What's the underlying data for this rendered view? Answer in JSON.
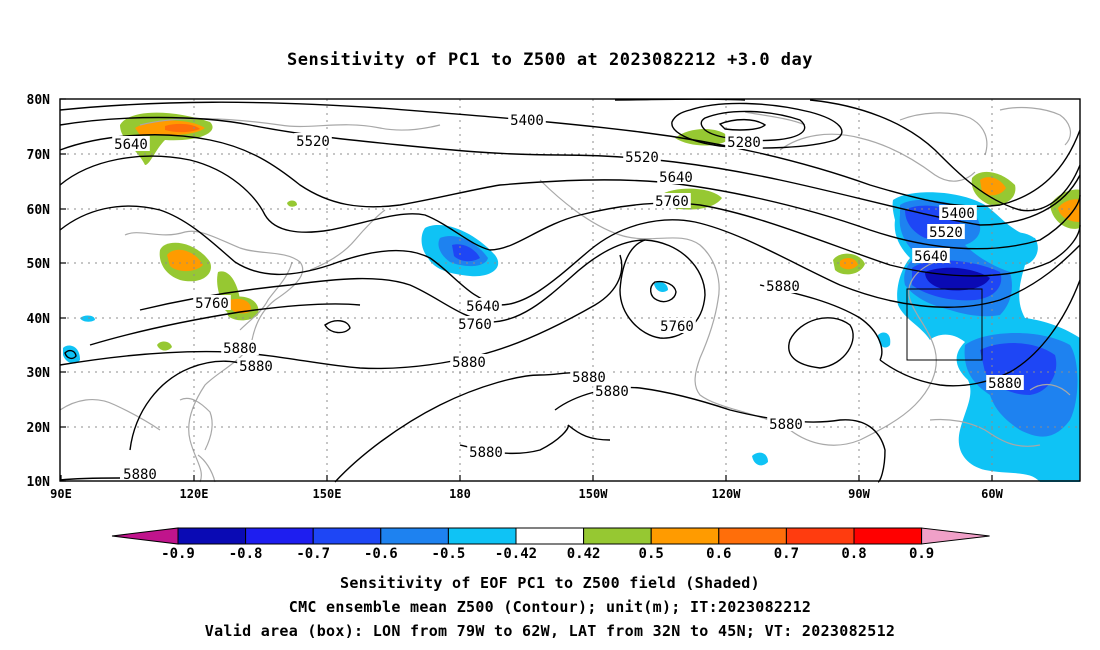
{
  "title": "Sensitivity of PC1 to Z500 at 2023082212 +3.0 day",
  "lat_labels": [
    "80N",
    "70N",
    "60N",
    "50N",
    "40N",
    "30N",
    "20N",
    "10N"
  ],
  "lon_labels": [
    "90E",
    "120E",
    "150E",
    "180",
    "150W",
    "120W",
    "90W",
    "60W"
  ],
  "contour_labels": [
    "5400",
    "5520",
    "5640",
    "5280",
    "5520",
    "5640",
    "5760",
    "5400",
    "5520",
    "5640",
    "5760",
    "5640",
    "5760",
    "5760",
    "5880",
    "5880",
    "5880",
    "5880",
    "5880",
    "5880",
    "5880",
    "5880",
    "5880",
    "5880"
  ],
  "colorbar": {
    "tick_labels": [
      "-0.9",
      "-0.8",
      "-0.7",
      "-0.6",
      "-0.5",
      "-0.42",
      "0.42",
      "0.5",
      "0.6",
      "0.7",
      "0.8",
      "0.9"
    ],
    "colors": [
      "#c0148c",
      "#0a0ab4",
      "#1e1ef0",
      "#1e46f5",
      "#1e82f0",
      "#0fc3f5",
      "#ffffff",
      "#96c832",
      "#ff9b00",
      "#ff6e0a",
      "#ff3c0f",
      "#ff0000",
      "#f0a0c8"
    ]
  },
  "captions": [
    "Sensitivity of EOF PC1 to Z500 field (Shaded)",
    "CMC ensemble mean Z500 (Contour); unit(m); IT:2023082212",
    "Valid area (box): LON from 79W to 62W, LAT from 32N to 45N; VT: 2023082512"
  ]
}
